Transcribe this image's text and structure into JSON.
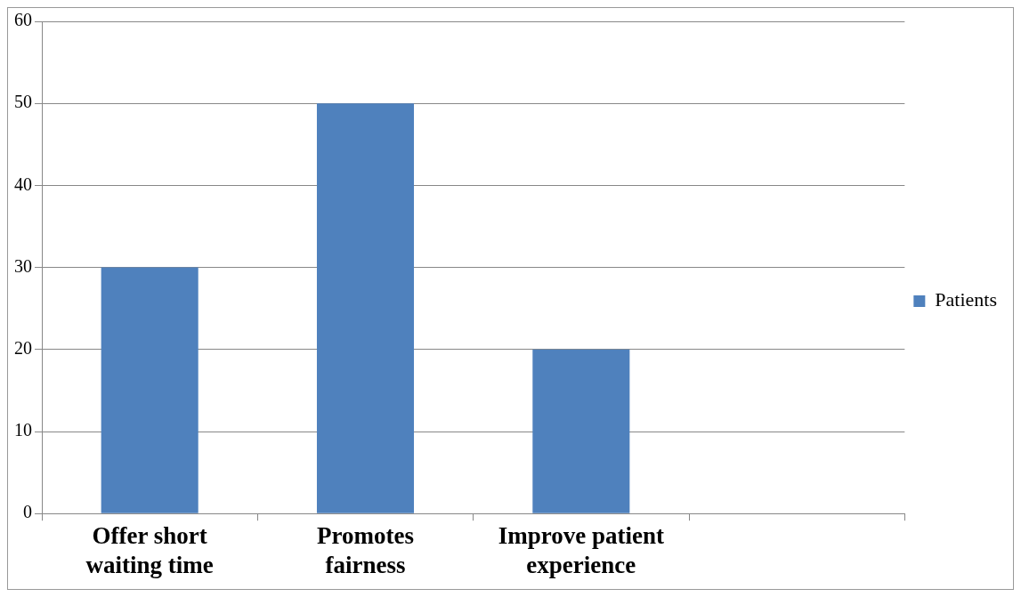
{
  "chart_data": {
    "type": "bar",
    "categories": [
      "Offer short waiting time",
      "Promotes fairness",
      "Improve patient experience",
      null
    ],
    "series": [
      {
        "name": "Patients",
        "color": "#4f81bd",
        "values": [
          30,
          50,
          20,
          null
        ]
      }
    ],
    "ylim": [
      0,
      60
    ],
    "yticks": [
      0,
      10,
      20,
      30,
      40,
      50,
      60
    ],
    "grid": "y",
    "legend": "right"
  }
}
